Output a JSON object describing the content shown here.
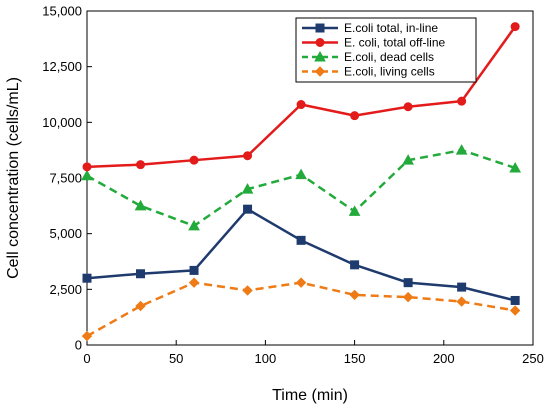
{
  "chart_data": {
    "type": "line",
    "title": "",
    "xlabel": "Time  (min)",
    "ylabel": "Cell concentration  (cells/mL)",
    "xlim": [
      0,
      250
    ],
    "ylim": [
      0,
      15000
    ],
    "x_ticks": [
      "0",
      "50",
      "100",
      "150",
      "200",
      "250"
    ],
    "y_ticks": [
      "0",
      "2,500",
      "5,000",
      "7,500",
      "10,000",
      "12,500",
      "15,000"
    ],
    "grid": false,
    "legend_position": "top-right",
    "x": [
      0,
      30,
      60,
      90,
      120,
      150,
      180,
      210,
      240
    ],
    "series": [
      {
        "name": "E.coli total, in-line",
        "color": "#1f3b6e",
        "marker": "square",
        "line_style": "solid",
        "values": [
          3000,
          3200,
          3350,
          6100,
          4700,
          3600,
          2800,
          2600,
          2000
        ]
      },
      {
        "name": "E. coli, total off-line",
        "color": "#e31b1b",
        "marker": "circle",
        "line_style": "solid",
        "values": [
          8000,
          8100,
          8300,
          8500,
          10800,
          10300,
          10700,
          10950,
          14300
        ]
      },
      {
        "name": "E.coli, dead cells",
        "color": "#22aa3a",
        "marker": "triangle",
        "line_style": "dashed",
        "values": [
          7600,
          6250,
          5350,
          7000,
          7650,
          6000,
          8300,
          8750,
          7950
        ]
      },
      {
        "name": "E.coli, living cells",
        "color": "#ee7b16",
        "marker": "diamond",
        "line_style": "dashed",
        "values": [
          400,
          1750,
          2800,
          2450,
          2800,
          2250,
          2150,
          1950,
          1550
        ]
      }
    ]
  }
}
